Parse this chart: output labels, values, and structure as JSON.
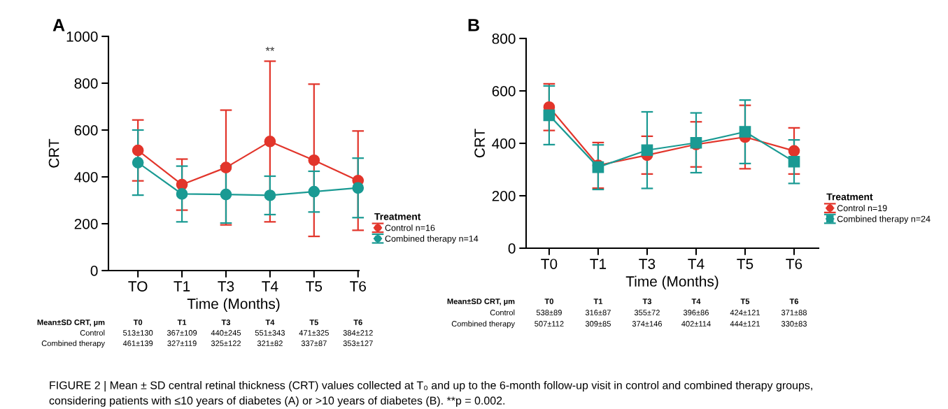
{
  "chart_data": [
    {
      "type": "line",
      "title": "A",
      "xlabel": "Time (Months)",
      "ylabel": "CRT",
      "legend_title": "Treatment",
      "legend": "right",
      "grid": false,
      "categories": [
        "TO",
        "T1",
        "T3",
        "T4",
        "T5",
        "T6"
      ],
      "ylim": [
        0,
        1000
      ],
      "yticks": [
        0,
        200,
        400,
        600,
        800,
        1000
      ],
      "series": [
        {
          "name": "Control n=16",
          "color": "#e2352b",
          "marker": "circle",
          "values": [
            513,
            367,
            440,
            551,
            471,
            384
          ],
          "errors": [
            130,
            109,
            245,
            343,
            325,
            212
          ],
          "value_labels": [
            "513±130",
            "367±109",
            "440±245",
            "551±343",
            "471±325",
            "384±212"
          ]
        },
        {
          "name": "Combined therapy n=14",
          "color": "#1a9a93",
          "marker": "circle",
          "values": [
            461,
            327,
            325,
            321,
            337,
            353
          ],
          "errors": [
            139,
            119,
            122,
            82,
            87,
            127
          ],
          "value_labels": [
            "461±139",
            "327±119",
            "325±122",
            "321±82",
            "337±87",
            "353±127"
          ]
        }
      ],
      "annotations": [
        "Mean±SD CRT, µm",
        "T0",
        "T1",
        "T3",
        "T4",
        "T5",
        "T6",
        "Control",
        "Combined therapy",
        {
          "text": "**",
          "x": "T4",
          "y": 894
        },
        "FIGURE 2 | Mean ± SD central retinal thickness (CRT) values collected at T₀ and up to the 6-month follow-up visit in control and combined therapy groups,\nconsidering patients with ≤10 years of diabetes (A) or >10 years of diabetes (B). **p = 0.002."
      ]
    },
    {
      "type": "line",
      "title": "B",
      "xlabel": "Time (Months)",
      "ylabel": "CRT",
      "legend_title": "Treatment",
      "legend": "right",
      "grid": false,
      "categories": [
        "T0",
        "T1",
        "T3",
        "T4",
        "T5",
        "T6"
      ],
      "ylim": [
        0,
        800
      ],
      "yticks": [
        0,
        200,
        400,
        600,
        800
      ],
      "series": [
        {
          "name": "Control n=19",
          "color": "#e2352b",
          "marker": "circle",
          "values": [
            538,
            316,
            355,
            396,
            424,
            371
          ],
          "errors": [
            89,
            87,
            72,
            86,
            121,
            88
          ],
          "value_labels": [
            "538±89",
            "316±87",
            "355±72",
            "396±86",
            "424±121",
            "371±88"
          ]
        },
        {
          "name": "Combined therapy n=24",
          "color": "#1a9a93",
          "marker": "square",
          "values": [
            507,
            309,
            374,
            402,
            444,
            330
          ],
          "errors": [
            112,
            85,
            146,
            114,
            121,
            83
          ],
          "value_labels": [
            "507±112",
            "309±85",
            "374±146",
            "402±114",
            "444±121",
            "330±83"
          ]
        }
      ],
      "annotations": [
        "Mean±SD CRT, µm",
        "T0",
        "T1",
        "T3",
        "T4",
        "T5",
        "T6",
        "Control",
        "Combined therapy"
      ]
    }
  ]
}
